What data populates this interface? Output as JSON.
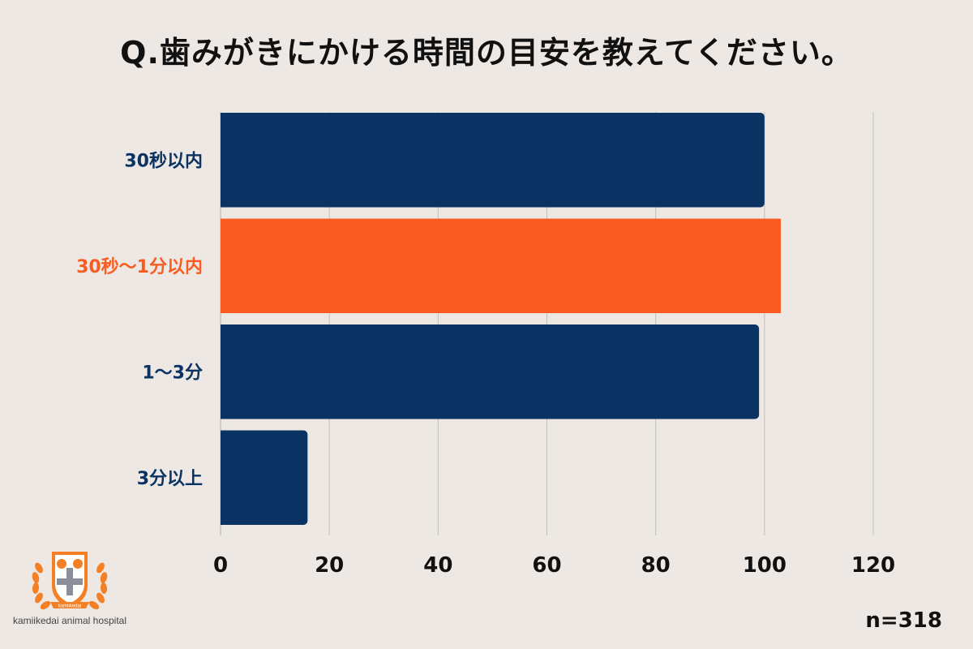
{
  "title": "Q.歯みがきにかける時間の目安を教えてください。",
  "sample_note": "n=318",
  "logo": {
    "brand_text": "kamiikedai animal hospital",
    "badge_text": "kamiikedai",
    "color_primary": "#f47f24",
    "color_secondary": "#8a8f9a"
  },
  "colors": {
    "bar_default": "#0a3363",
    "bar_highlight": "#f95c21",
    "label_default": "#0a3363",
    "label_highlight": "#f95c21",
    "grid": "#c3bfbb",
    "axis_text": "#111111"
  },
  "chart_data": {
    "type": "bar",
    "orientation": "horizontal",
    "categories": [
      "30秒以内",
      "30秒〜1分以内",
      "1〜3分",
      "3分以上"
    ],
    "values": [
      100,
      103,
      99,
      16
    ],
    "highlight_index": 1,
    "xlim": [
      0,
      120
    ],
    "xticks": [
      0,
      20,
      40,
      60,
      80,
      100,
      120
    ],
    "grid": true
  }
}
